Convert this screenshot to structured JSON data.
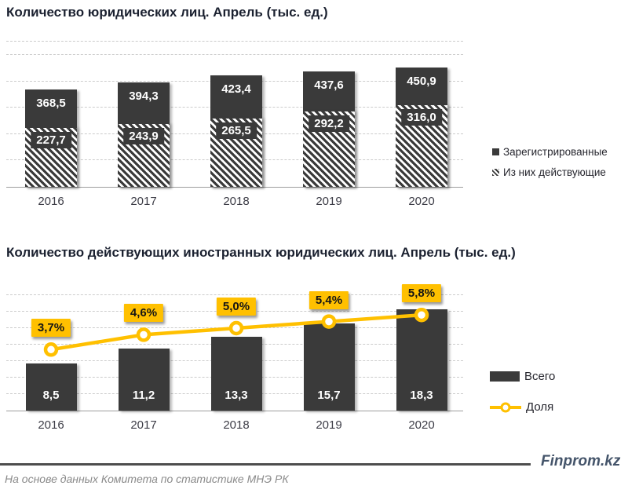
{
  "chart_data": [
    {
      "type": "bar",
      "title": "Количество юридических лиц. Апрель (тыс. ед.)",
      "categories": [
        "2016",
        "2017",
        "2018",
        "2019",
        "2020"
      ],
      "series": [
        {
          "name": "Зарегистрированные",
          "marker": "solid-square",
          "values": [
            368.5,
            394.3,
            423.4,
            437.6,
            450.9
          ],
          "labels": [
            "368,5",
            "394,3",
            "423,4",
            "437,6",
            "450,9"
          ]
        },
        {
          "name": "Из них действующие",
          "marker": "hatched-square",
          "values": [
            227.7,
            243.9,
            265.5,
            292.2,
            316.0
          ],
          "labels": [
            "227,7",
            "243,9",
            "265,5",
            "292,2",
            "316,0"
          ]
        }
      ],
      "ylim": [
        0,
        550
      ],
      "grid": "dashed-horizontal",
      "legend_position": "right"
    },
    {
      "type": "bar+line",
      "title": "Количество действующих иностранных юридических лиц. Апрель (тыс. ед.)",
      "categories": [
        "2016",
        "2017",
        "2018",
        "2019",
        "2020"
      ],
      "series": [
        {
          "name": "Всего",
          "type": "bar",
          "marker": "solid-rect",
          "values": [
            8.5,
            11.2,
            13.3,
            15.7,
            18.3
          ],
          "labels": [
            "8,5",
            "11,2",
            "13,3",
            "15,7",
            "18,3"
          ]
        },
        {
          "name": "Доля",
          "type": "line",
          "marker": "line-dot",
          "values": [
            3.7,
            4.6,
            5.0,
            5.4,
            5.8
          ],
          "labels": [
            "3,7%",
            "4,6%",
            "5,0%",
            "5,4%",
            "5,8%"
          ]
        }
      ],
      "ylim": [
        0,
        20
      ],
      "y2lim": [
        0,
        7
      ],
      "grid": "dashed-horizontal",
      "legend_position": "right"
    }
  ],
  "footer": {
    "source": "На основе данных Комитета по статистике МНЭ РК",
    "brand": "Finprom.kz"
  },
  "colors": {
    "bar": "#3a3a3a",
    "accent": "#ffc000",
    "grid": "#cbcbcb",
    "axis": "#9d9d9d",
    "title_text": "#1b2130",
    "source_text": "#8a8a8a",
    "brand_text": "#44546a"
  }
}
